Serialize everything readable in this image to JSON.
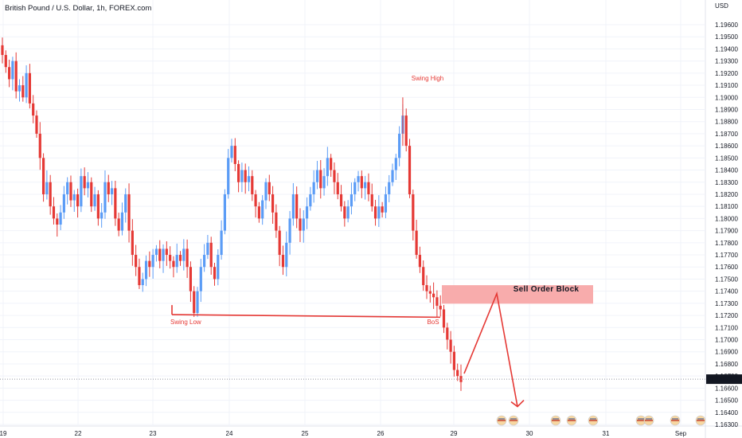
{
  "title": "British Pound / U.S. Dollar, 1h, FOREX.com",
  "currency_label": "USD",
  "current_price": "1.16674",
  "colors": {
    "up": "#5b9cf6",
    "down": "#e53935",
    "ob_fill": "#f7a3a3",
    "grid": "#f0f3fa",
    "accent": "#e53935"
  },
  "annotations": {
    "swing_high": "Swing High",
    "swing_low": "Swing Low",
    "bos": "BoS",
    "order_block": "Sell Order Block"
  },
  "chart_data": {
    "type": "candlestick",
    "title": "British Pound / U.S. Dollar, 1h, FOREX.com",
    "ylabel": "USD",
    "ylim": [
      1.163,
      1.197
    ],
    "y_ticks": [
      "1.19600",
      "1.19500",
      "1.19400",
      "1.19300",
      "1.19200",
      "1.19100",
      "1.19000",
      "1.18900",
      "1.18800",
      "1.18700",
      "1.18600",
      "1.18500",
      "1.18400",
      "1.18300",
      "1.18200",
      "1.18100",
      "1.18000",
      "1.17900",
      "1.17800",
      "1.17700",
      "1.17600",
      "1.17500",
      "1.17400",
      "1.17300",
      "1.17200",
      "1.17100",
      "1.17000",
      "1.16900",
      "1.16800",
      "1.16700",
      "1.16600",
      "1.16500",
      "1.16400",
      "1.16300"
    ],
    "x_ticks": [
      "19",
      "22",
      "23",
      "24",
      "25",
      "26",
      "29",
      "30",
      "31",
      "Sep"
    ],
    "close_path": [
      1.1935,
      1.1925,
      1.1915,
      1.193,
      1.1905,
      1.191,
      1.19,
      1.192,
      1.1895,
      1.1885,
      1.187,
      1.185,
      1.182,
      1.183,
      1.181,
      1.18,
      1.1795,
      1.1805,
      1.182,
      1.183,
      1.1815,
      1.182,
      1.181,
      1.1835,
      1.1825,
      1.183,
      1.181,
      1.182,
      1.18,
      1.1805,
      1.183,
      1.182,
      1.1825,
      1.18,
      1.179,
      1.1805,
      1.182,
      1.179,
      1.177,
      1.176,
      1.1745,
      1.175,
      1.1765,
      1.176,
      1.177,
      1.1775,
      1.1765,
      1.1775,
      1.177,
      1.1765,
      1.176,
      1.177,
      1.1765,
      1.1775,
      1.176,
      1.174,
      1.1722,
      1.174,
      1.176,
      1.177,
      1.178,
      1.176,
      1.175,
      1.177,
      1.179,
      1.182,
      1.185,
      1.186,
      1.1845,
      1.183,
      1.184,
      1.183,
      1.1835,
      1.182,
      1.181,
      1.18,
      1.1815,
      1.183,
      1.182,
      1.1805,
      1.179,
      1.177,
      1.176,
      1.178,
      1.18,
      1.182,
      1.18,
      1.179,
      1.18,
      1.181,
      1.182,
      1.183,
      1.184,
      1.1825,
      1.1835,
      1.185,
      1.184,
      1.183,
      1.182,
      1.181,
      1.18,
      1.181,
      1.182,
      1.183,
      1.1835,
      1.1825,
      1.183,
      1.182,
      1.181,
      1.18,
      1.181,
      1.1805,
      1.182,
      1.183,
      1.184,
      1.185,
      1.187,
      1.1885,
      1.186,
      1.182,
      1.179,
      1.177,
      1.176,
      1.1745,
      1.174,
      1.1738,
      1.1735,
      1.1728,
      1.1725,
      1.171,
      1.17,
      1.169,
      1.1675,
      1.167,
      1.1665
    ],
    "swing_high_price": 1.19,
    "swing_low_price": 1.172,
    "order_block_range": [
      1.1733,
      1.1743
    ],
    "projection_prices": [
      1.1672,
      1.1738,
      1.165
    ]
  }
}
